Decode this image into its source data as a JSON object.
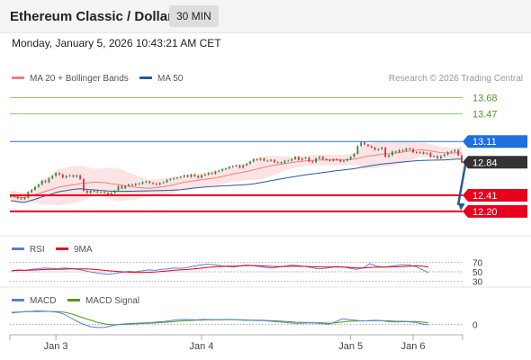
{
  "header": {
    "title": "Ethereum Classic / Dollar",
    "interval": "30 MIN",
    "datetime": "Monday, January 5, 2026 10:43:21 AM CET"
  },
  "colors": {
    "ma20": "#f08080",
    "ma50": "#2a5a9a",
    "bollinger_fill": "#fadadd",
    "resistance": "#8fce6b",
    "pivot": "#1f6fe0",
    "support": "#e8001c",
    "current": "#333333",
    "candle_up": "#2e8b3a",
    "candle_down": "#d0343a",
    "rsi": "#5b7fd6",
    "rsi_ma": "#e8001c",
    "macd": "#5b7fd6",
    "macd_signal": "#4f9a1e",
    "arrow": "#2a5a9a"
  },
  "chart_data": [
    {
      "type": "candlestick",
      "legend": [
        {
          "name": "MA 20 + Bollinger Bands",
          "color": "#f08080"
        },
        {
          "name": "MA 50",
          "color": "#2a5a9a"
        }
      ],
      "copyright": "Research © 2026 Trading Central",
      "ylim": [
        12.0,
        13.85
      ],
      "levels": [
        {
          "value": 13.68,
          "label": "13.68",
          "kind": "resistance"
        },
        {
          "value": 13.47,
          "label": "13.47",
          "kind": "resistance"
        },
        {
          "value": 13.11,
          "label": "13.11",
          "kind": "pivot"
        },
        {
          "value": 12.84,
          "label": "12.84",
          "kind": "current"
        },
        {
          "value": 12.41,
          "label": "12.41",
          "kind": "support"
        },
        {
          "value": 12.2,
          "label": "12.20",
          "kind": "support"
        }
      ],
      "forecast_arrow": {
        "from": 12.84,
        "to": 12.2
      },
      "x_ticks": [
        "Jan 3",
        "Jan 4",
        "Jan 5",
        "Jan 6"
      ],
      "x_tick_bars": [
        13,
        55,
        98,
        116
      ],
      "close": [
        12.4,
        12.39,
        12.37,
        12.36,
        12.38,
        12.45,
        12.48,
        12.52,
        12.55,
        12.6,
        12.58,
        12.63,
        12.66,
        12.7,
        12.68,
        12.64,
        12.66,
        12.67,
        12.65,
        12.67,
        12.62,
        12.47,
        12.44,
        12.47,
        12.46,
        12.45,
        12.45,
        12.44,
        12.42,
        12.44,
        12.47,
        12.53,
        12.5,
        12.53,
        12.55,
        12.54,
        12.56,
        12.56,
        12.58,
        12.59,
        12.57,
        12.56,
        12.55,
        12.57,
        12.58,
        12.61,
        12.62,
        12.63,
        12.64,
        12.65,
        12.67,
        12.65,
        12.68,
        12.66,
        12.64,
        12.67,
        12.68,
        12.7,
        12.69,
        12.72,
        12.73,
        12.75,
        12.76,
        12.78,
        12.79,
        12.8,
        12.77,
        12.8,
        12.82,
        12.85,
        12.88,
        12.87,
        12.89,
        12.86,
        12.86,
        12.87,
        12.84,
        12.84,
        12.83,
        12.86,
        12.86,
        12.88,
        12.91,
        12.87,
        12.89,
        12.9,
        12.85,
        12.84,
        12.89,
        12.91,
        12.88,
        12.87,
        12.86,
        12.88,
        12.87,
        12.85,
        12.86,
        12.88,
        12.91,
        12.95,
        13.05,
        13.1,
        13.07,
        13.05,
        13.03,
        13.0,
        13.01,
        13.03,
        12.91,
        12.93,
        12.98,
        12.97,
        13.0,
        12.99,
        13.02,
        13.01,
        12.97,
        12.96,
        12.97,
        12.95,
        12.96,
        12.91,
        12.92,
        12.89,
        12.92,
        12.94,
        12.97,
        12.98,
        13.0,
        12.93,
        12.84
      ],
      "open_close_delta_pattern": "derived from close sequence",
      "rsi": {
        "legend": [
          {
            "name": "RSI",
            "color": "#5b7fd6"
          },
          {
            "name": "9MA",
            "color": "#e8001c"
          }
        ],
        "levels": [
          {
            "value": 70,
            "label": "70"
          },
          {
            "value": 50,
            "label": "50"
          },
          {
            "value": 30,
            "label": "30"
          }
        ],
        "ylim": [
          20,
          80
        ],
        "values": [
          52,
          54,
          53,
          55,
          56,
          58,
          57,
          56,
          58,
          57,
          55,
          53,
          50,
          48,
          46,
          45,
          47,
          49,
          51,
          50,
          52,
          54,
          53,
          55,
          56,
          58,
          57,
          59,
          62,
          64,
          66,
          65,
          63,
          61,
          60,
          62,
          64,
          63,
          61,
          59,
          58,
          60,
          62,
          64,
          63,
          61,
          59,
          56,
          57,
          59,
          61,
          60,
          57,
          55,
          58,
          67,
          62,
          60,
          61,
          63,
          65,
          64,
          61,
          55,
          48
        ]
      },
      "macd": {
        "legend": [
          {
            "name": "MACD",
            "color": "#5b7fd6"
          },
          {
            "name": "MACD Signal",
            "color": "#4f9a1e"
          }
        ],
        "levels": [
          {
            "value": 0,
            "label": "0"
          }
        ],
        "ylim": [
          -0.07,
          0.11
        ],
        "macd": [
          0.08,
          0.085,
          0.09,
          0.092,
          0.095,
          0.093,
          0.09,
          0.085,
          0.07,
          0.045,
          0.02,
          0.0,
          -0.015,
          -0.02,
          -0.02,
          -0.01,
          0.0,
          0.005,
          0.008,
          0.01,
          0.012,
          0.014,
          0.018,
          0.022,
          0.028,
          0.033,
          0.036,
          0.034,
          0.033,
          0.036,
          0.035,
          0.034,
          0.035,
          0.036,
          0.034,
          0.03,
          0.03,
          0.029,
          0.028,
          0.025,
          0.02,
          0.017,
          0.012,
          0.008,
          0.01,
          0.012,
          0.01,
          0.006,
          0.004,
          0.02,
          0.04,
          0.035,
          0.03,
          0.025,
          0.028,
          0.03,
          0.028,
          0.02,
          0.018,
          0.02,
          0.02,
          0.015,
          0.005,
          -0.002
        ],
        "signal": [
          0.085,
          0.087,
          0.089,
          0.09,
          0.091,
          0.092,
          0.091,
          0.09,
          0.085,
          0.075,
          0.06,
          0.045,
          0.03,
          0.015,
          0.005,
          0.0,
          0.0,
          0.002,
          0.004,
          0.006,
          0.008,
          0.01,
          0.012,
          0.015,
          0.019,
          0.023,
          0.027,
          0.029,
          0.031,
          0.032,
          0.033,
          0.033,
          0.034,
          0.034,
          0.034,
          0.033,
          0.032,
          0.031,
          0.03,
          0.028,
          0.026,
          0.023,
          0.02,
          0.017,
          0.015,
          0.014,
          0.013,
          0.012,
          0.01,
          0.012,
          0.018,
          0.023,
          0.025,
          0.026,
          0.026,
          0.027,
          0.027,
          0.026,
          0.024,
          0.023,
          0.022,
          0.021,
          0.018,
          0.012
        ]
      }
    }
  ]
}
